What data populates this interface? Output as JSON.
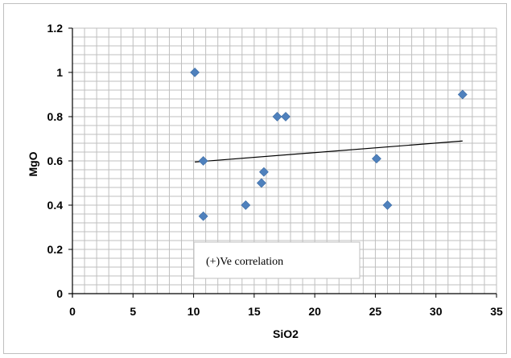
{
  "chart_data": {
    "type": "scatter",
    "xlabel": "SiO2",
    "ylabel": "MgO",
    "xlim": [
      0,
      35
    ],
    "ylim": [
      0,
      1.2
    ],
    "x_ticks": [
      "0",
      "5",
      "10",
      "15",
      "20",
      "25",
      "30",
      "35"
    ],
    "y_ticks": [
      "0",
      "0.2",
      "0.4",
      "0.6",
      "0.8",
      "1",
      "1.2"
    ],
    "x_minor_step": 1,
    "y_minor_step": 0.04,
    "grid": true,
    "points": [
      {
        "x": 10.1,
        "y": 1.0
      },
      {
        "x": 10.8,
        "y": 0.6
      },
      {
        "x": 10.8,
        "y": 0.35
      },
      {
        "x": 14.3,
        "y": 0.4
      },
      {
        "x": 15.6,
        "y": 0.5
      },
      {
        "x": 15.8,
        "y": 0.55
      },
      {
        "x": 16.9,
        "y": 0.8
      },
      {
        "x": 17.6,
        "y": 0.8
      },
      {
        "x": 25.1,
        "y": 0.61
      },
      {
        "x": 26.0,
        "y": 0.4
      },
      {
        "x": 32.2,
        "y": 0.9
      }
    ],
    "trendline": {
      "x": [
        10.1,
        32.2
      ],
      "y": [
        0.595,
        0.69
      ]
    },
    "annotation": "(+)Ve correlation",
    "colors": {
      "marker": "#4f81bd",
      "trendline": "#000000",
      "grid": "#bfbfbf",
      "axis": "#000000"
    }
  }
}
